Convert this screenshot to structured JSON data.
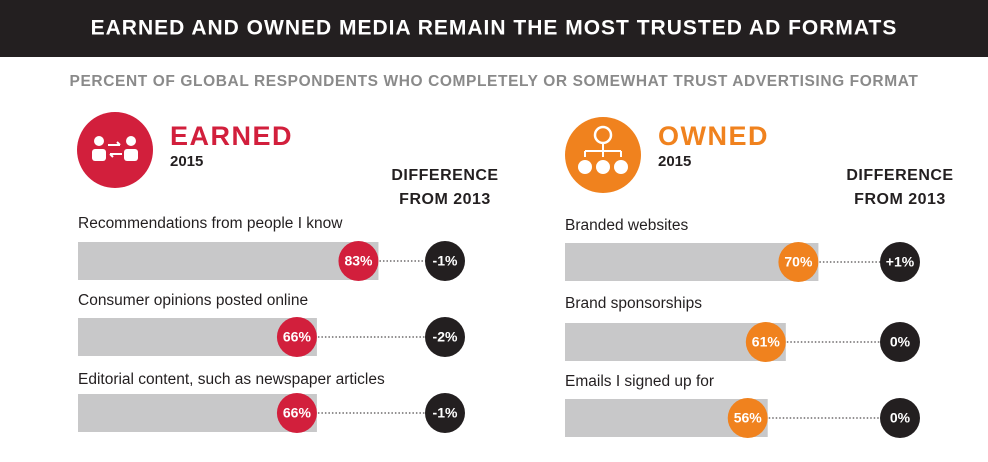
{
  "title": "EARNED AND OWNED MEDIA REMAIN THE MOST TRUSTED AD FORMATS",
  "subtitle": "PERCENT OF GLOBAL RESPONDENTS WHO COMPLETELY OR SOMEWHAT TRUST ADVERTISING FORMAT",
  "chart_data": [
    {
      "type": "bar",
      "orientation": "horizontal",
      "title": "EARNED",
      "subtitle": "2015",
      "color": "#d21f3c",
      "difference_header": "DIFFERENCE FROM 2013",
      "categories": [
        "Recommendations from people I know",
        "Consumer opinions posted online",
        "Editorial content, such as newspaper articles"
      ],
      "values": [
        83,
        66,
        66
      ],
      "value_labels": [
        "83%",
        "66%",
        "66%"
      ],
      "changes": [
        -1,
        -2,
        -1
      ],
      "change_labels": [
        "-1%",
        "-2%",
        "-1%"
      ]
    },
    {
      "type": "bar",
      "orientation": "horizontal",
      "title": "OWNED",
      "subtitle": "2015",
      "color": "#f0821e",
      "difference_header": "DIFFERENCE FROM 2013",
      "categories": [
        "Branded websites",
        "Brand sponsorships",
        "Emails I signed up for"
      ],
      "values": [
        70,
        61,
        56
      ],
      "value_labels": [
        "70%",
        "61%",
        "56%"
      ],
      "changes": [
        1,
        0,
        0
      ],
      "change_labels": [
        "+1%",
        "0%",
        "0%"
      ]
    }
  ]
}
